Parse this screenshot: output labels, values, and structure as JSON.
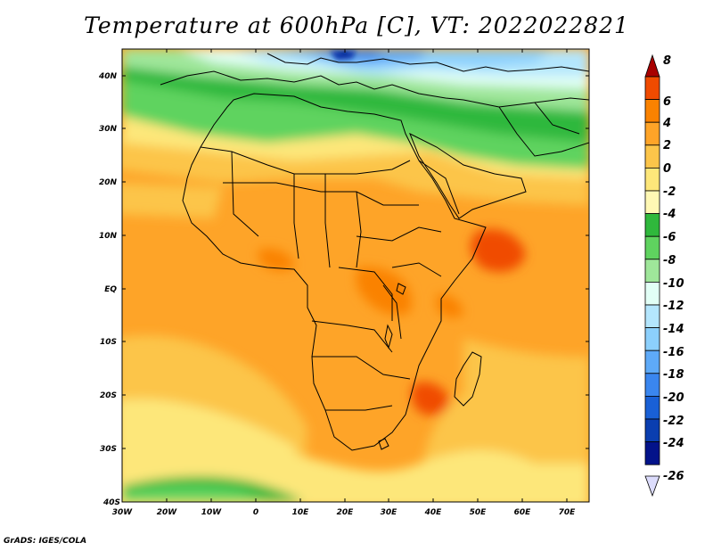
{
  "title": "Temperature at 600hPa [C], VT: 2022022821",
  "footer": "GrADS: IGES/COLA",
  "map": {
    "lon_range": [
      -30,
      75
    ],
    "lat_range": [
      -40,
      45
    ],
    "lon_ticks": [
      "30W",
      "20W",
      "10W",
      "0",
      "10E",
      "20E",
      "30E",
      "40E",
      "50E",
      "60E",
      "70E"
    ],
    "lat_ticks": [
      "40N",
      "30N",
      "20N",
      "10N",
      "EQ",
      "10S",
      "20S",
      "30S",
      "40S"
    ]
  },
  "colorbar": {
    "labels": [
      "8",
      "6",
      "4",
      "2",
      "0",
      "-2",
      "-4",
      "-6",
      "-8",
      "-10",
      "-12",
      "-14",
      "-16",
      "-18",
      "-20",
      "-22",
      "-24",
      "-26"
    ],
    "colors": [
      "#c81e00",
      "#f04b00",
      "#fa8200",
      "#fea428",
      "#fcc54a",
      "#fde77a",
      "#fff8b4",
      "#2fb83c",
      "#5fd35f",
      "#9fe69a",
      "#e2fff6",
      "#b4e6fd",
      "#8cd0fc",
      "#5eaaf8",
      "#3a86ef",
      "#1960d6",
      "#0a3eb0",
      "#03138a"
    ],
    "top_arrow_color": "#a80000",
    "bottom_arrow_color": "#dcdcfc"
  }
}
